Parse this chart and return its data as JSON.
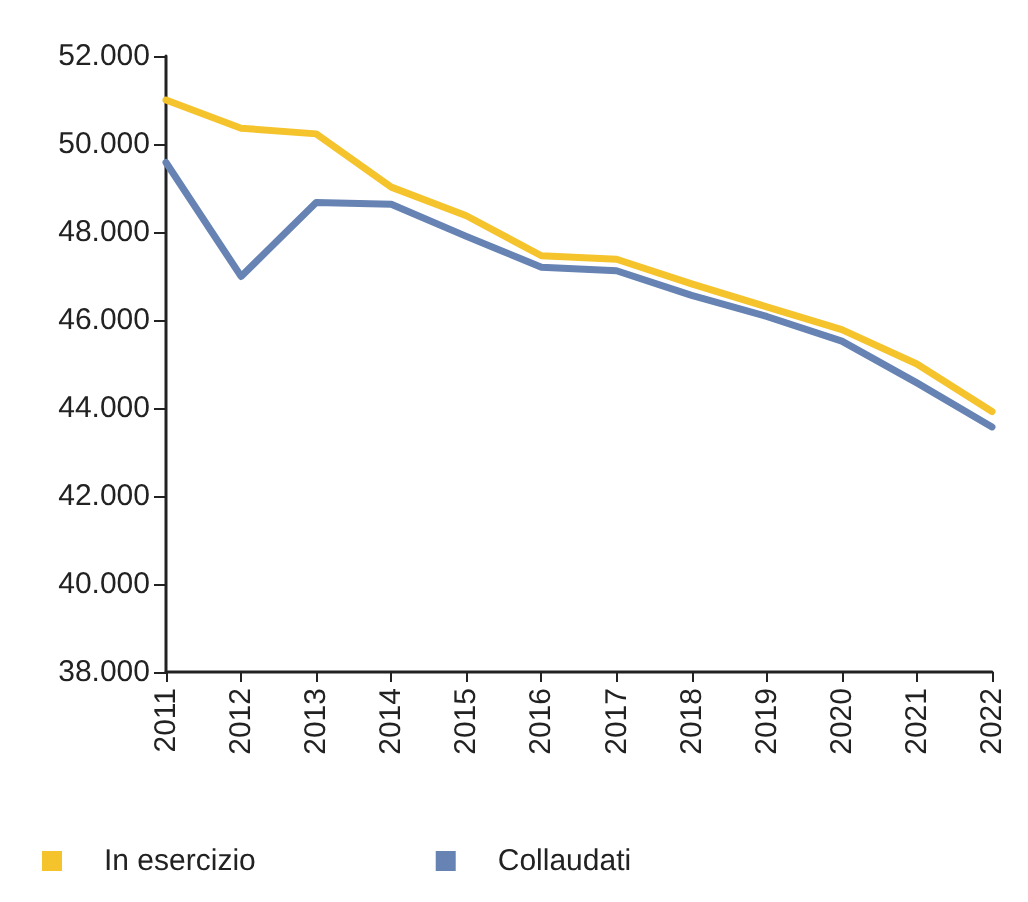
{
  "chart_data": {
    "type": "line",
    "categories": [
      "2011",
      "2012",
      "2013",
      "2014",
      "2015",
      "2016",
      "2017",
      "2018",
      "2019",
      "2020",
      "2021",
      "2022"
    ],
    "series": [
      {
        "name": "In esercizio",
        "color": "#f5c32c",
        "values": [
          51000,
          50360,
          50230,
          49020,
          48370,
          47460,
          47380,
          46820,
          46300,
          45780,
          45000,
          43920
        ]
      },
      {
        "name": "Collaudati",
        "color": "#6683b3",
        "values": [
          49580,
          46990,
          48670,
          48630,
          47900,
          47200,
          47120,
          46560,
          46080,
          45520,
          44570,
          43570
        ]
      }
    ],
    "ylim": [
      38000,
      52000
    ],
    "yticks": [
      {
        "value": 38000,
        "label": "38.000"
      },
      {
        "value": 40000,
        "label": "40.000"
      },
      {
        "value": 42000,
        "label": "42.000"
      },
      {
        "value": 44000,
        "label": "44.000"
      },
      {
        "value": 46000,
        "label": "46.000"
      },
      {
        "value": 48000,
        "label": "48.000"
      },
      {
        "value": 50000,
        "label": "50.000"
      },
      {
        "value": 52000,
        "label": "52.000"
      }
    ],
    "grid": false,
    "legend": "bottom left",
    "marker": "none",
    "line_style": "solid"
  }
}
